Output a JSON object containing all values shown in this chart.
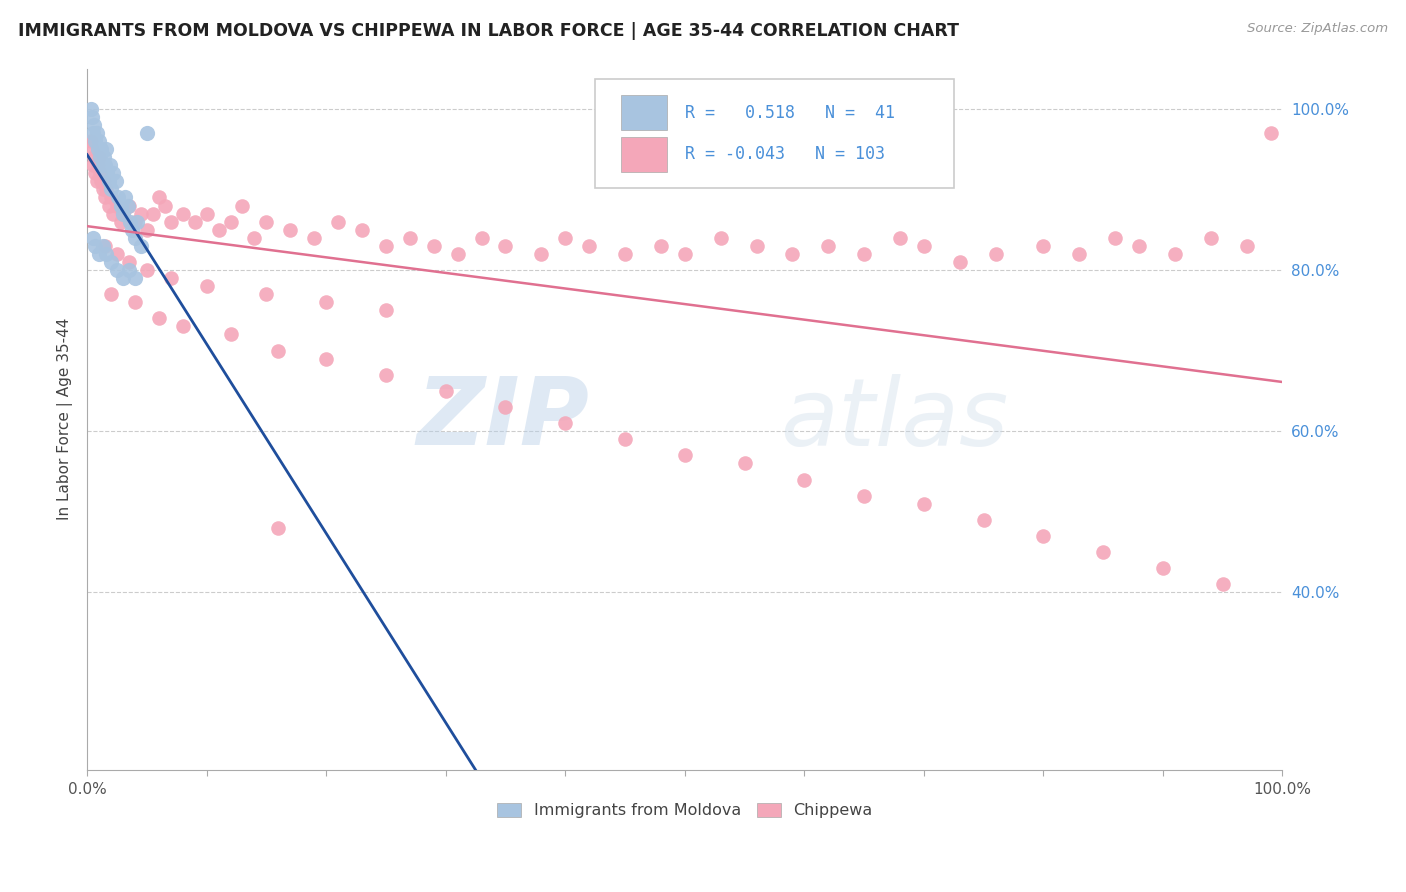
{
  "title": "IMMIGRANTS FROM MOLDOVA VS CHIPPEWA IN LABOR FORCE | AGE 35-44 CORRELATION CHART",
  "source": "Source: ZipAtlas.com",
  "ylabel": "In Labor Force | Age 35-44",
  "xlim": [
    0.0,
    1.0
  ],
  "ylim": [
    0.18,
    1.05
  ],
  "ytick_right_labels": [
    "100.0%",
    "80.0%",
    "60.0%",
    "40.0%"
  ],
  "ytick_right_values": [
    1.0,
    0.8,
    0.6,
    0.4
  ],
  "legend_entries": [
    "Immigrants from Moldova",
    "Chippewa"
  ],
  "r_moldova": 0.518,
  "n_moldova": 41,
  "r_chippewa": -0.043,
  "n_chippewa": 103,
  "moldova_color": "#a8c4e0",
  "chippewa_color": "#f4a7b9",
  "moldova_line_color": "#1f4e9c",
  "chippewa_line_color": "#e07090",
  "background_color": "#ffffff",
  "watermark_zip": "ZIP",
  "watermark_atlas": "atlas",
  "moldova_points_x": [
    0.003,
    0.004,
    0.005,
    0.006,
    0.007,
    0.008,
    0.009,
    0.01,
    0.011,
    0.012,
    0.013,
    0.014,
    0.015,
    0.016,
    0.017,
    0.018,
    0.019,
    0.02,
    0.022,
    0.024,
    0.026,
    0.028,
    0.03,
    0.032,
    0.034,
    0.036,
    0.038,
    0.04,
    0.042,
    0.045,
    0.005,
    0.007,
    0.01,
    0.013,
    0.016,
    0.02,
    0.025,
    0.03,
    0.035,
    0.04,
    0.05
  ],
  "moldova_points_y": [
    1.0,
    0.99,
    0.97,
    0.98,
    0.96,
    0.97,
    0.95,
    0.96,
    0.94,
    0.95,
    0.93,
    0.94,
    0.93,
    0.95,
    0.92,
    0.91,
    0.93,
    0.9,
    0.92,
    0.91,
    0.89,
    0.88,
    0.87,
    0.89,
    0.88,
    0.86,
    0.85,
    0.84,
    0.86,
    0.83,
    0.84,
    0.83,
    0.82,
    0.83,
    0.82,
    0.81,
    0.8,
    0.79,
    0.8,
    0.79,
    0.97
  ],
  "chippewa_points_x": [
    0.003,
    0.004,
    0.005,
    0.006,
    0.007,
    0.008,
    0.009,
    0.01,
    0.011,
    0.012,
    0.013,
    0.014,
    0.015,
    0.016,
    0.018,
    0.02,
    0.022,
    0.025,
    0.028,
    0.03,
    0.035,
    0.04,
    0.045,
    0.05,
    0.055,
    0.06,
    0.065,
    0.07,
    0.08,
    0.09,
    0.1,
    0.11,
    0.12,
    0.13,
    0.14,
    0.15,
    0.17,
    0.19,
    0.21,
    0.23,
    0.25,
    0.27,
    0.29,
    0.31,
    0.33,
    0.35,
    0.38,
    0.4,
    0.42,
    0.45,
    0.48,
    0.5,
    0.53,
    0.56,
    0.59,
    0.62,
    0.65,
    0.68,
    0.7,
    0.73,
    0.76,
    0.8,
    0.83,
    0.86,
    0.88,
    0.91,
    0.94,
    0.97,
    0.99,
    0.015,
    0.025,
    0.035,
    0.05,
    0.07,
    0.1,
    0.15,
    0.2,
    0.25,
    0.02,
    0.04,
    0.06,
    0.08,
    0.12,
    0.16,
    0.2,
    0.25,
    0.3,
    0.35,
    0.4,
    0.45,
    0.5,
    0.55,
    0.6,
    0.65,
    0.7,
    0.75,
    0.8,
    0.85,
    0.9,
    0.95,
    0.16
  ],
  "chippewa_points_y": [
    0.96,
    0.95,
    0.93,
    0.94,
    0.92,
    0.91,
    0.93,
    0.94,
    0.92,
    0.91,
    0.9,
    0.91,
    0.89,
    0.9,
    0.88,
    0.89,
    0.87,
    0.88,
    0.86,
    0.87,
    0.88,
    0.86,
    0.87,
    0.85,
    0.87,
    0.89,
    0.88,
    0.86,
    0.87,
    0.86,
    0.87,
    0.85,
    0.86,
    0.88,
    0.84,
    0.86,
    0.85,
    0.84,
    0.86,
    0.85,
    0.83,
    0.84,
    0.83,
    0.82,
    0.84,
    0.83,
    0.82,
    0.84,
    0.83,
    0.82,
    0.83,
    0.82,
    0.84,
    0.83,
    0.82,
    0.83,
    0.82,
    0.84,
    0.83,
    0.81,
    0.82,
    0.83,
    0.82,
    0.84,
    0.83,
    0.82,
    0.84,
    0.83,
    0.97,
    0.83,
    0.82,
    0.81,
    0.8,
    0.79,
    0.78,
    0.77,
    0.76,
    0.75,
    0.77,
    0.76,
    0.74,
    0.73,
    0.72,
    0.7,
    0.69,
    0.67,
    0.65,
    0.63,
    0.61,
    0.59,
    0.57,
    0.56,
    0.54,
    0.52,
    0.51,
    0.49,
    0.47,
    0.45,
    0.43,
    0.41,
    0.48
  ]
}
